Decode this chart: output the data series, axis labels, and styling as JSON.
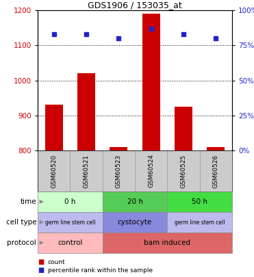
{
  "title": "GDS1906 / 153035_at",
  "samples": [
    "GSM60520",
    "GSM60521",
    "GSM60523",
    "GSM60524",
    "GSM60525",
    "GSM60526"
  ],
  "counts": [
    930,
    1020,
    810,
    1190,
    925,
    810
  ],
  "percentiles": [
    83,
    83,
    80,
    87,
    83,
    80
  ],
  "ylim_left": [
    800,
    1200
  ],
  "yticks_left": [
    800,
    900,
    1000,
    1100,
    1200
  ],
  "ylim_right": [
    0,
    100
  ],
  "yticks_right": [
    0,
    25,
    50,
    75,
    100
  ],
  "bar_color": "#cc0000",
  "dot_color": "#2222cc",
  "time_groups": [
    {
      "label": "0 h",
      "start": 0,
      "end": 2,
      "color": "#ccffcc"
    },
    {
      "label": "20 h",
      "start": 2,
      "end": 4,
      "color": "#55cc55"
    },
    {
      "label": "50 h",
      "start": 4,
      "end": 6,
      "color": "#44dd44"
    }
  ],
  "cell_type_groups": [
    {
      "label": "germ line stem cell",
      "start": 0,
      "end": 2,
      "color": "#bbbbee"
    },
    {
      "label": "cystocyte",
      "start": 2,
      "end": 4,
      "color": "#8888dd"
    },
    {
      "label": "germ line stem cell",
      "start": 4,
      "end": 6,
      "color": "#bbbbee"
    }
  ],
  "protocol_groups": [
    {
      "label": "control",
      "start": 0,
      "end": 2,
      "color": "#ffbbbb"
    },
    {
      "label": "bam induced",
      "start": 2,
      "end": 6,
      "color": "#dd6666"
    }
  ],
  "row_labels": [
    "time",
    "cell type",
    "protocol"
  ],
  "legend_count_label": "count",
  "legend_pct_label": "percentile rank within the sample",
  "bg_color": "#ffffff",
  "sample_box_color": "#cccccc",
  "sample_box_edge": "#999999"
}
